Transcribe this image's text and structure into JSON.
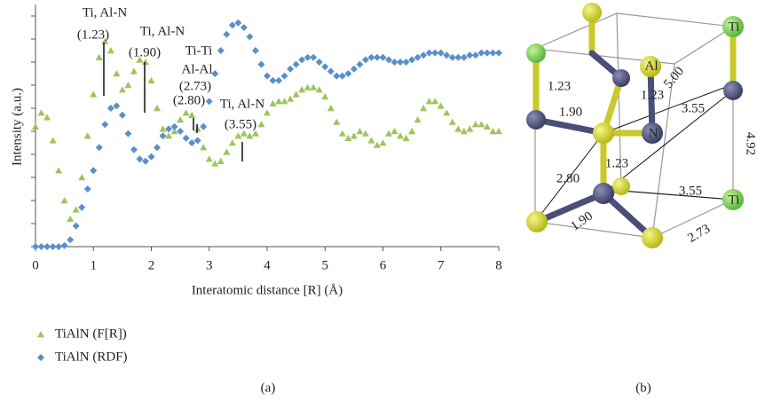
{
  "chart_data": {
    "type": "scatter",
    "x_label": "Interatomic distance [R] (Å)",
    "y_label": "Intensity (a.u.)",
    "x": [
      0,
      0.1,
      0.2,
      0.3,
      0.4,
      0.5,
      0.6,
      0.7,
      0.8,
      0.9,
      1,
      1.1,
      1.2,
      1.3,
      1.4,
      1.5,
      1.6,
      1.7,
      1.8,
      1.9,
      2,
      2.1,
      2.2,
      2.3,
      2.4,
      2.5,
      2.6,
      2.7,
      2.8,
      2.9,
      3,
      3.1,
      3.2,
      3.3,
      3.4,
      3.5,
      3.6,
      3.7,
      3.8,
      3.9,
      4,
      4.1,
      4.2,
      4.3,
      4.4,
      4.5,
      4.6,
      4.7,
      4.8,
      4.9,
      5,
      5.1,
      5.2,
      5.3,
      5.4,
      5.5,
      5.6,
      5.7,
      5.8,
      5.9,
      6,
      6.1,
      6.2,
      6.3,
      6.4,
      6.5,
      6.6,
      6.7,
      6.8,
      6.9,
      7,
      7.1,
      7.2,
      7.3,
      7.4,
      7.5,
      7.6,
      7.7,
      7.8,
      7.9,
      8
    ],
    "series": [
      {
        "name": "TiAlN (F[R])",
        "color": "#9dc55a",
        "marker": "triangle",
        "values": [
          5.2,
          5.8,
          5.6,
          4.6,
          3.3,
          2.0,
          1.2,
          1.6,
          3.0,
          4.8,
          6.6,
          8.2,
          8.9,
          8.5,
          7.5,
          6.8,
          7.0,
          7.6,
          8.1,
          8.0,
          7.2,
          6.0,
          5.1,
          4.8,
          5.0,
          5.5,
          5.8,
          5.7,
          5.1,
          4.3,
          3.8,
          3.6,
          3.7,
          4.1,
          4.5,
          4.8,
          4.9,
          4.8,
          4.9,
          5.3,
          5.8,
          6.2,
          6.3,
          6.3,
          6.4,
          6.6,
          6.8,
          6.9,
          6.9,
          6.8,
          6.5,
          6.0,
          5.4,
          4.9,
          4.7,
          4.8,
          5.0,
          4.9,
          4.6,
          4.4,
          4.5,
          4.9,
          5.0,
          4.8,
          4.7,
          5.0,
          5.5,
          6.0,
          6.3,
          6.3,
          6.1,
          5.8,
          5.4,
          5.1,
          5.0,
          5.1,
          5.3,
          5.3,
          5.2,
          5.0,
          5.0
        ]
      },
      {
        "name": "TiAlN (RDF)",
        "color": "#5b8fc9",
        "marker": "diamond",
        "values": [
          0,
          0,
          0,
          0,
          0,
          0.05,
          0.3,
          0.9,
          1.7,
          2.5,
          3.3,
          4.3,
          5.3,
          6.0,
          6.1,
          5.7,
          4.9,
          4.2,
          3.8,
          3.7,
          3.9,
          4.3,
          4.8,
          5.1,
          5.2,
          5.0,
          4.7,
          4.5,
          4.6,
          5.2,
          6.3,
          7.5,
          8.5,
          9.2,
          9.6,
          9.7,
          9.5,
          9.1,
          8.5,
          7.9,
          7.4,
          7.2,
          7.2,
          7.4,
          7.7,
          7.9,
          8.1,
          8.2,
          8.2,
          8.0,
          7.8,
          7.6,
          7.4,
          7.4,
          7.5,
          7.7,
          7.9,
          8.1,
          8.2,
          8.2,
          8.2,
          8.1,
          8.0,
          8.0,
          8.0,
          8.1,
          8.2,
          8.3,
          8.4,
          8.4,
          8.4,
          8.3,
          8.2,
          8.2,
          8.2,
          8.3,
          8.3,
          8.4,
          8.4,
          8.4,
          8.4
        ]
      }
    ],
    "xlim": [
      0,
      8
    ],
    "xticks": [
      0,
      1,
      2,
      3,
      4,
      5,
      6,
      7,
      8
    ],
    "ylim": [
      0,
      10.5
    ],
    "yticks": [
      0,
      1,
      2,
      3,
      4,
      5,
      6,
      7,
      8,
      9,
      10
    ],
    "legend": "below",
    "annotations": [
      {
        "lines": [
          "Ti, Al-N",
          "(1.23)"
        ]
      },
      {
        "lines": [
          "Ti, Al-N",
          "(1.90)"
        ]
      },
      {
        "lines": [
          "Ti-Ti",
          "Al-Al",
          "(2.73)"
        ]
      },
      {
        "lines": [
          "(2.80)"
        ]
      },
      {
        "lines": [
          "Ti, Al-N",
          "(3.55)"
        ]
      }
    ]
  },
  "diagram": {
    "atom_labels": [
      "Ti",
      "Al",
      "N",
      "Ti"
    ],
    "distance_labels": [
      "1.23",
      "1.90",
      "1.23",
      "3.55",
      "5.00",
      "4.92",
      "1.23",
      "2.80",
      "3.55",
      "1.90",
      "2.73"
    ]
  },
  "panel_labels": [
    "(a)",
    "(b)"
  ]
}
